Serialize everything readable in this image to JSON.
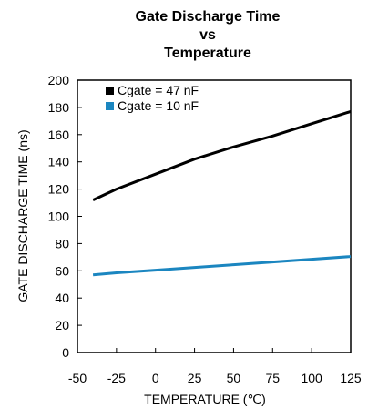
{
  "chart_data": {
    "type": "line",
    "title_lines": [
      "Gate Discharge Time",
      "vs",
      "Temperature"
    ],
    "xlabel": "TEMPERATURE (℃)",
    "ylabel": "GATE DISCHARGE TIME (ns)",
    "xlim": [
      -50,
      125
    ],
    "ylim": [
      0,
      200
    ],
    "xticks": [
      -50,
      -25,
      0,
      25,
      50,
      75,
      100,
      125
    ],
    "yticks": [
      0,
      20,
      40,
      60,
      80,
      100,
      120,
      140,
      160,
      180,
      200
    ],
    "grid": false,
    "legend_position": "top-left",
    "series": [
      {
        "name": "Cgate = 47 nF",
        "color": "#000000",
        "x": [
          -40,
          -25,
          0,
          25,
          50,
          75,
          100,
          125
        ],
        "y": [
          112,
          120,
          131,
          142,
          151,
          159,
          168,
          177
        ]
      },
      {
        "name": "Cgate = 10 nF",
        "color": "#1b86c0",
        "x": [
          -40,
          -25,
          0,
          25,
          50,
          75,
          100,
          125
        ],
        "y": [
          57,
          58.5,
          60.5,
          62.5,
          64.5,
          66.5,
          68.5,
          70.5
        ]
      }
    ]
  }
}
